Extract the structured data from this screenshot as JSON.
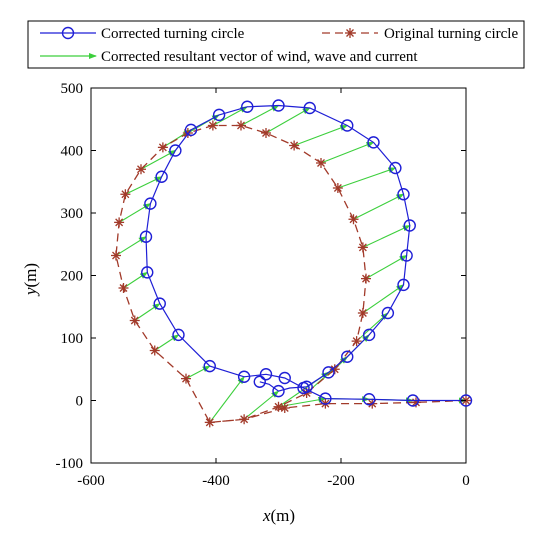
{
  "chart_data": {
    "type": "line",
    "xlabel_var": "x",
    "xlabel_unit": "(m)",
    "ylabel_var": "y",
    "ylabel_unit": "(m)",
    "xlim": [
      -600,
      0
    ],
    "ylim": [
      -100,
      500
    ],
    "xticks": [
      -600,
      -400,
      -200,
      0
    ],
    "yticks": [
      -100,
      0,
      100,
      200,
      300,
      400,
      500
    ],
    "grid": false,
    "legend_position": "top",
    "legend": {
      "corrected": "Corrected turning circle",
      "original": "Original turning circle",
      "vector": "Corrected resultant vector of wind, wave and current"
    },
    "colors": {
      "corrected": "#1f1fd6",
      "original": "#a23a2a",
      "vector": "#3ccf3c"
    },
    "series": [
      {
        "name": "Corrected turning circle",
        "marker": "circle",
        "line": "solid",
        "points": [
          [
            0,
            0
          ],
          [
            -85,
            0
          ],
          [
            -155,
            2
          ],
          [
            -225,
            3
          ],
          [
            -260,
            20
          ],
          [
            -290,
            36
          ],
          [
            -320,
            42
          ],
          [
            -355,
            38
          ],
          [
            -410,
            55
          ],
          [
            -460,
            105
          ],
          [
            -490,
            155
          ],
          [
            -510,
            205
          ],
          [
            -512,
            262
          ],
          [
            -505,
            315
          ],
          [
            -487,
            358
          ],
          [
            -465,
            400
          ],
          [
            -440,
            433
          ],
          [
            -395,
            457
          ],
          [
            -350,
            470
          ],
          [
            -300,
            472
          ],
          [
            -250,
            468
          ],
          [
            -190,
            440
          ],
          [
            -148,
            413
          ],
          [
            -113,
            372
          ],
          [
            -100,
            330
          ],
          [
            -90,
            280
          ],
          [
            -95,
            232
          ],
          [
            -100,
            185
          ],
          [
            -125,
            140
          ],
          [
            -155,
            105
          ],
          [
            -190,
            70
          ],
          [
            -220,
            45
          ],
          [
            -255,
            22
          ],
          [
            -282,
            20
          ],
          [
            -300,
            15
          ],
          [
            -315,
            26
          ],
          [
            -330,
            30
          ]
        ],
        "marked_x": [
          0,
          -85,
          -155,
          -225,
          -260,
          -290,
          -320,
          -355,
          -410,
          -460,
          -490,
          -510,
          -512,
          -505,
          -487,
          -465,
          -440,
          -395,
          -350,
          -300,
          -250,
          -190,
          -148,
          -113,
          -100,
          -90,
          -95,
          -100,
          -125,
          -155,
          -190,
          -220,
          -255,
          -300,
          -330
        ]
      },
      {
        "name": "Original turning circle",
        "marker": "asterisk",
        "line": "dashed",
        "points": [
          [
            0,
            0
          ],
          [
            -80,
            -3
          ],
          [
            -150,
            -5
          ],
          [
            -225,
            -5
          ],
          [
            -290,
            -12
          ],
          [
            -355,
            -30
          ],
          [
            -410,
            -35
          ],
          [
            -448,
            35
          ],
          [
            -498,
            80
          ],
          [
            -530,
            128
          ],
          [
            -548,
            180
          ],
          [
            -560,
            232
          ],
          [
            -555,
            285
          ],
          [
            -545,
            330
          ],
          [
            -520,
            370
          ],
          [
            -485,
            405
          ],
          [
            -445,
            428
          ],
          [
            -405,
            440
          ],
          [
            -360,
            440
          ],
          [
            -320,
            428
          ],
          [
            -275,
            408
          ],
          [
            -232,
            380
          ],
          [
            -205,
            340
          ],
          [
            -180,
            290
          ],
          [
            -165,
            245
          ],
          [
            -160,
            195
          ],
          [
            -165,
            140
          ],
          [
            -175,
            95
          ],
          [
            -210,
            50
          ],
          [
            -255,
            12
          ],
          [
            -300,
            -10
          ],
          [
            -355,
            -30
          ],
          [
            -410,
            -35
          ]
        ]
      }
    ],
    "vectors": [
      {
        "from": [
          -85,
          0
        ],
        "to": [
          0,
          0
        ]
      },
      {
        "from": [
          -155,
          2
        ],
        "to": [
          -85,
          0
        ]
      },
      {
        "from": [
          -225,
          3
        ],
        "to": [
          -155,
          2
        ]
      },
      {
        "from": [
          -300,
          -10
        ],
        "to": [
          -225,
          3
        ]
      },
      {
        "from": [
          -355,
          -30
        ],
        "to": [
          -300,
          15
        ]
      },
      {
        "from": [
          -410,
          -35
        ],
        "to": [
          -355,
          38
        ]
      },
      {
        "from": [
          -448,
          35
        ],
        "to": [
          -410,
          55
        ]
      },
      {
        "from": [
          -498,
          80
        ],
        "to": [
          -460,
          105
        ]
      },
      {
        "from": [
          -530,
          128
        ],
        "to": [
          -490,
          155
        ]
      },
      {
        "from": [
          -548,
          180
        ],
        "to": [
          -510,
          205
        ]
      },
      {
        "from": [
          -560,
          232
        ],
        "to": [
          -512,
          262
        ]
      },
      {
        "from": [
          -555,
          285
        ],
        "to": [
          -505,
          315
        ]
      },
      {
        "from": [
          -545,
          330
        ],
        "to": [
          -487,
          358
        ]
      },
      {
        "from": [
          -520,
          370
        ],
        "to": [
          -465,
          400
        ]
      },
      {
        "from": [
          -485,
          405
        ],
        "to": [
          -440,
          433
        ]
      },
      {
        "from": [
          -445,
          428
        ],
        "to": [
          -395,
          457
        ]
      },
      {
        "from": [
          -405,
          440
        ],
        "to": [
          -350,
          470
        ]
      },
      {
        "from": [
          -360,
          440
        ],
        "to": [
          -300,
          472
        ]
      },
      {
        "from": [
          -320,
          428
        ],
        "to": [
          -250,
          468
        ]
      },
      {
        "from": [
          -275,
          408
        ],
        "to": [
          -190,
          440
        ]
      },
      {
        "from": [
          -232,
          380
        ],
        "to": [
          -148,
          413
        ]
      },
      {
        "from": [
          -205,
          340
        ],
        "to": [
          -113,
          372
        ]
      },
      {
        "from": [
          -180,
          290
        ],
        "to": [
          -100,
          330
        ]
      },
      {
        "from": [
          -165,
          245
        ],
        "to": [
          -90,
          280
        ]
      },
      {
        "from": [
          -160,
          195
        ],
        "to": [
          -95,
          232
        ]
      },
      {
        "from": [
          -165,
          140
        ],
        "to": [
          -100,
          185
        ]
      },
      {
        "from": [
          -175,
          95
        ],
        "to": [
          -125,
          140
        ]
      },
      {
        "from": [
          -210,
          50
        ],
        "to": [
          -155,
          105
        ]
      },
      {
        "from": [
          -255,
          12
        ],
        "to": [
          -190,
          70
        ]
      },
      {
        "from": [
          -300,
          -10
        ],
        "to": [
          -220,
          45
        ]
      }
    ]
  }
}
